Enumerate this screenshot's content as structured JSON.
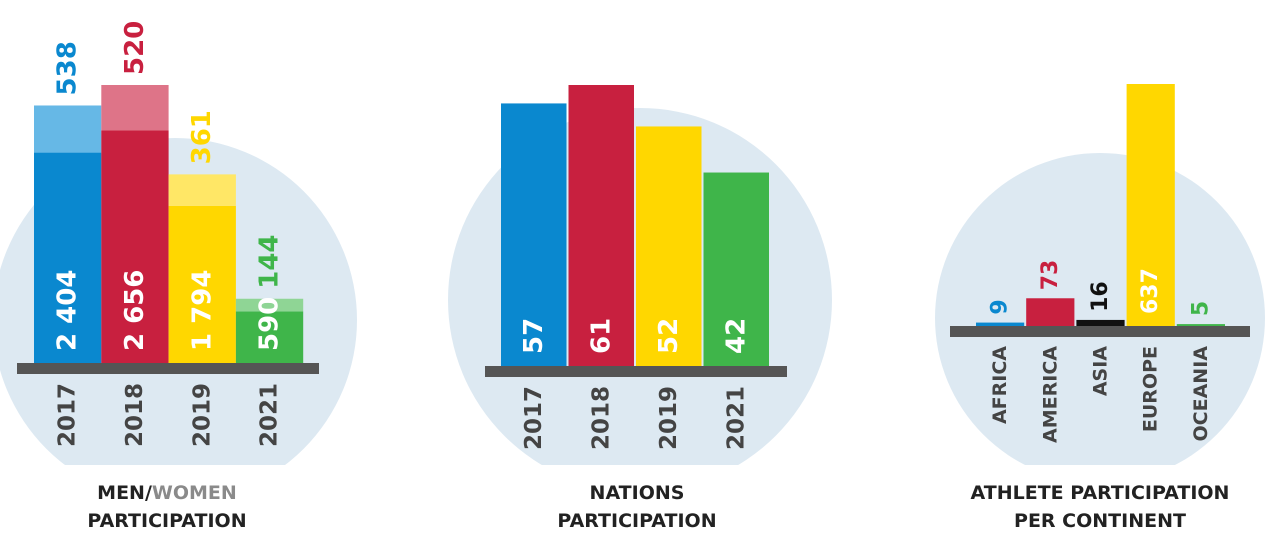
{
  "chart_data": [
    {
      "type": "stacked_bar",
      "title": [
        "MEN/",
        "WOMEN",
        "PARTICIPATION"
      ],
      "categories": [
        "2017",
        "2018",
        "2019",
        "2021"
      ],
      "series": [
        {
          "colors": [
            "#0a88cf",
            "#c8203f",
            "#ffd700",
            "#3fb54a"
          ],
          "values": [
            2404,
            2656,
            1794,
            590
          ],
          "value_labels": [
            "2 404",
            "2 656",
            "1 794",
            "590"
          ]
        },
        {
          "colors": [
            "#66b8e6",
            "#de7488",
            "#ffe766",
            "#8fd595"
          ],
          "values": [
            538,
            520,
            361,
            144
          ]
        }
      ]
    },
    {
      "type": "bar",
      "title": [
        "NATIONS",
        "PARTICIPATION"
      ],
      "categories": [
        "2017",
        "2018",
        "2019",
        "2021"
      ],
      "colors": [
        "#0a88cf",
        "#c8203f",
        "#ffd700",
        "#3fb54a"
      ],
      "values": [
        57,
        61,
        52,
        42
      ]
    },
    {
      "type": "bar_top",
      "title": [
        "ATHLETE PARTICIPATION",
        "PER CONTINENT"
      ],
      "categories": [
        "AFRICA",
        "AMERICA",
        "ASIA",
        "EUROPE",
        "OCEANIA"
      ],
      "colors": [
        "#0a88cf",
        "#c8203f",
        "#111111",
        "#ffd700",
        "#3fb54a"
      ],
      "values": [
        9,
        73,
        16,
        637,
        5
      ]
    }
  ]
}
